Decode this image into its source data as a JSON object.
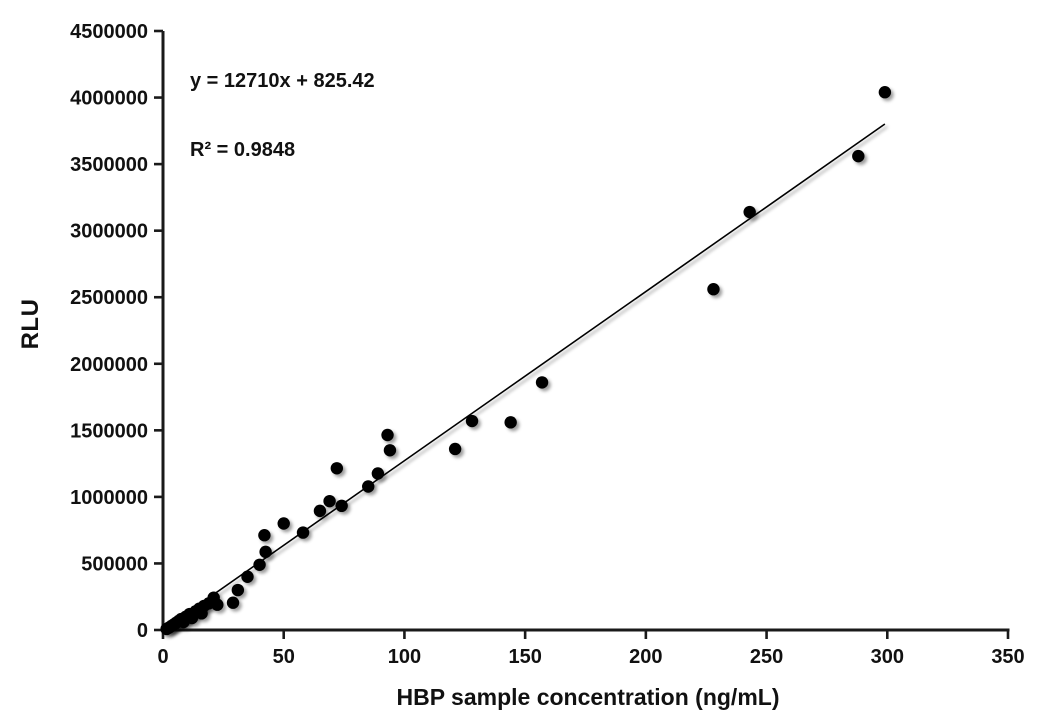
{
  "chart_data": {
    "type": "scatter",
    "title": "",
    "xlabel": "HBP sample concentration (ng/mL)",
    "ylabel": "RLU",
    "xlim": [
      0,
      350
    ],
    "ylim": [
      0,
      4500000
    ],
    "x_ticks": [
      0,
      50,
      100,
      150,
      200,
      250,
      300,
      350
    ],
    "y_ticks": [
      0,
      500000,
      1000000,
      1500000,
      2000000,
      2500000,
      3000000,
      3500000,
      4000000,
      4500000
    ],
    "grid": false,
    "legend": null,
    "marker": {
      "shape": "circle",
      "radius": 6.2
    },
    "colors": {
      "marker": "#000000",
      "trendline": "#000000",
      "axis": "#1a1a1a",
      "background": "#ffffff",
      "text": "#111111"
    },
    "points": [
      [
        1.5,
        8000
      ],
      [
        2.5,
        18000
      ],
      [
        3.5,
        30000
      ],
      [
        4.5,
        42000
      ],
      [
        5.5,
        55000
      ],
      [
        6.5,
        68000
      ],
      [
        7.5,
        82000
      ],
      [
        8.5,
        60000
      ],
      [
        9.5,
        100000
      ],
      [
        11,
        120000
      ],
      [
        12,
        90000
      ],
      [
        13.5,
        140000
      ],
      [
        15,
        160000
      ],
      [
        16,
        125000
      ],
      [
        17,
        181000
      ],
      [
        19,
        200000
      ],
      [
        21,
        243000
      ],
      [
        22.5,
        190000
      ],
      [
        29,
        205000
      ],
      [
        31,
        300000
      ],
      [
        35,
        400000
      ],
      [
        40,
        490000
      ],
      [
        42,
        712000
      ],
      [
        42.5,
        587000
      ],
      [
        50,
        800000
      ],
      [
        58,
        732000
      ],
      [
        65,
        895000
      ],
      [
        69,
        968000
      ],
      [
        72,
        1215000
      ],
      [
        74,
        933000
      ],
      [
        85,
        1078000
      ],
      [
        89,
        1176000
      ],
      [
        93,
        1465000
      ],
      [
        94,
        1350000
      ],
      [
        121,
        1360000
      ],
      [
        128,
        1570000
      ],
      [
        144,
        1560000
      ],
      [
        157,
        1860000
      ],
      [
        228,
        2560000
      ],
      [
        243,
        3140000
      ],
      [
        288,
        3560000
      ],
      [
        299,
        4040000
      ]
    ],
    "trendline": {
      "slope": 12710,
      "intercept": 825.42,
      "r_squared": 0.9848,
      "x_range": [
        1,
        299
      ],
      "equation": "y = 12710x + 825.42",
      "r2_label": "R² = 0.9848"
    }
  }
}
